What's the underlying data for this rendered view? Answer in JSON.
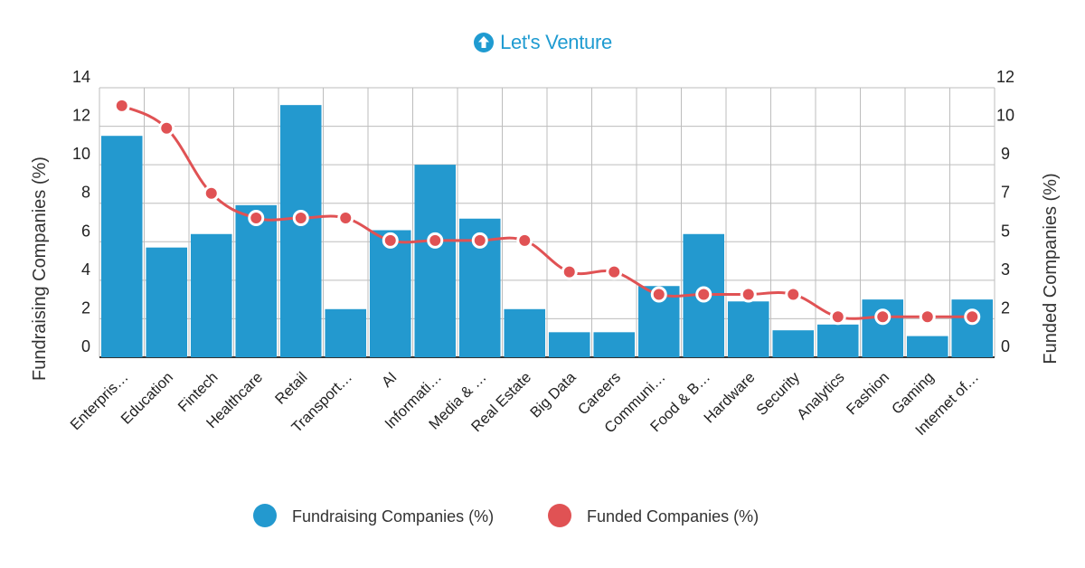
{
  "logo": {
    "text": "Let's Venture",
    "color": "#1f9bd1"
  },
  "colors": {
    "bars": "#2399cf",
    "line": "#e05254",
    "grid": "#bdbdbd",
    "axis": "#333333"
  },
  "chart_data": {
    "type": "bar+line",
    "categories": [
      "Enterpris…",
      "Education",
      "Fintech",
      "Healthcare",
      "Retail",
      "Transport…",
      "AI",
      "Informati…",
      "Media & …",
      "Real Estate",
      "Big Data",
      "Careers",
      "Communi…",
      "Food & B…",
      "Hardware",
      "Security",
      "Analytics",
      "Fashion",
      "Gaming",
      "Internet of…"
    ],
    "series": [
      {
        "name": "Fundraising Companies (%)",
        "type": "bar",
        "axis": "left",
        "values": [
          11.5,
          5.7,
          6.4,
          7.9,
          13.1,
          2.5,
          6.6,
          10.0,
          7.2,
          2.5,
          1.3,
          1.3,
          3.7,
          6.4,
          2.9,
          1.4,
          1.7,
          3.0,
          1.1,
          3.0
        ]
      },
      {
        "name": "Funded Companies (%)",
        "type": "line",
        "axis": "right",
        "values": [
          11.2,
          10.2,
          7.3,
          6.2,
          6.2,
          6.2,
          5.2,
          5.2,
          5.2,
          5.2,
          3.8,
          3.8,
          2.8,
          2.8,
          2.8,
          2.8,
          1.8,
          1.8,
          1.8,
          1.8
        ]
      }
    ],
    "y_left": {
      "label": "Fundraising Companies (%)",
      "ticks": [
        "0",
        "2",
        "4",
        "6",
        "8",
        "10",
        "12",
        "14"
      ],
      "ylim": [
        0,
        14
      ]
    },
    "y_right": {
      "label": "Funded Companies (%)",
      "ticks": [
        "0",
        "2",
        "3",
        "5",
        "7",
        "9",
        "10",
        "12"
      ],
      "ylim": [
        0,
        12
      ]
    },
    "grid": true,
    "legend": {
      "position": "bottom",
      "items": [
        "Fundraising Companies (%)",
        "Funded Companies (%)"
      ]
    }
  }
}
